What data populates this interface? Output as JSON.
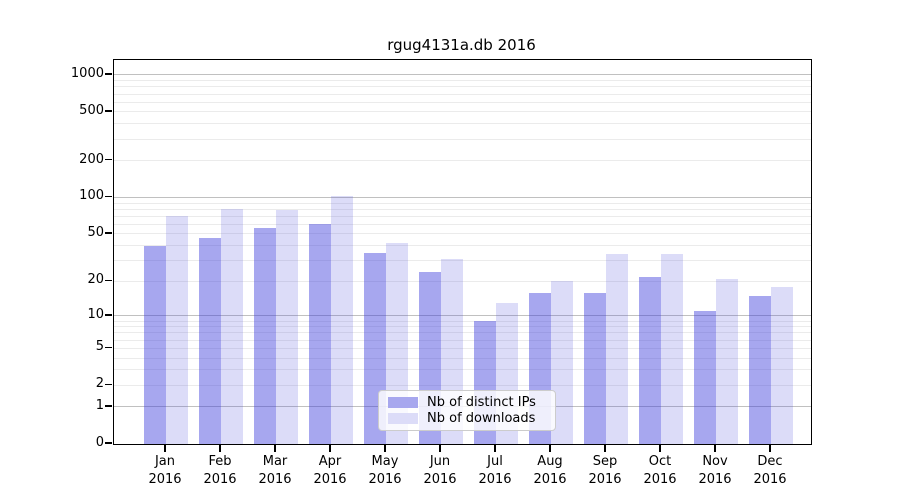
{
  "figure": {
    "background": "#ffffff"
  },
  "chart_data": {
    "type": "bar",
    "title": "rgug4131a.db 2016",
    "categories": [
      "Jan",
      "Feb",
      "Mar",
      "Apr",
      "May",
      "Jun",
      "Jul",
      "Aug",
      "Sep",
      "Oct",
      "Nov",
      "Dec"
    ],
    "x_year": "2016",
    "series": [
      {
        "name": "Nb of distinct IPs",
        "values": [
          40,
          46,
          56,
          60,
          35,
          24,
          9,
          16,
          16,
          22,
          11,
          15
        ],
        "fill": "rgba(60,60,220,0.45)",
        "swatch": "#a7a7ee"
      },
      {
        "name": "Nb of downloads",
        "values": [
          70,
          80,
          79,
          103,
          42,
          31,
          13,
          20,
          34,
          34,
          21,
          18
        ],
        "fill": "rgba(80,80,220,0.2)",
        "swatch": "#dcdcf8"
      }
    ],
    "y_scale": "log1p",
    "y_ticks": [
      0,
      1,
      2,
      5,
      10,
      20,
      50,
      100,
      200,
      500,
      1000
    ],
    "ylim": [
      0,
      1324
    ],
    "xlabel": "",
    "ylabel": "",
    "grid": {
      "which": "both",
      "major_color": "#c0c0c0",
      "minor_color": "#ebebeb"
    },
    "legend": {
      "position": "inside-bottom-center"
    }
  }
}
